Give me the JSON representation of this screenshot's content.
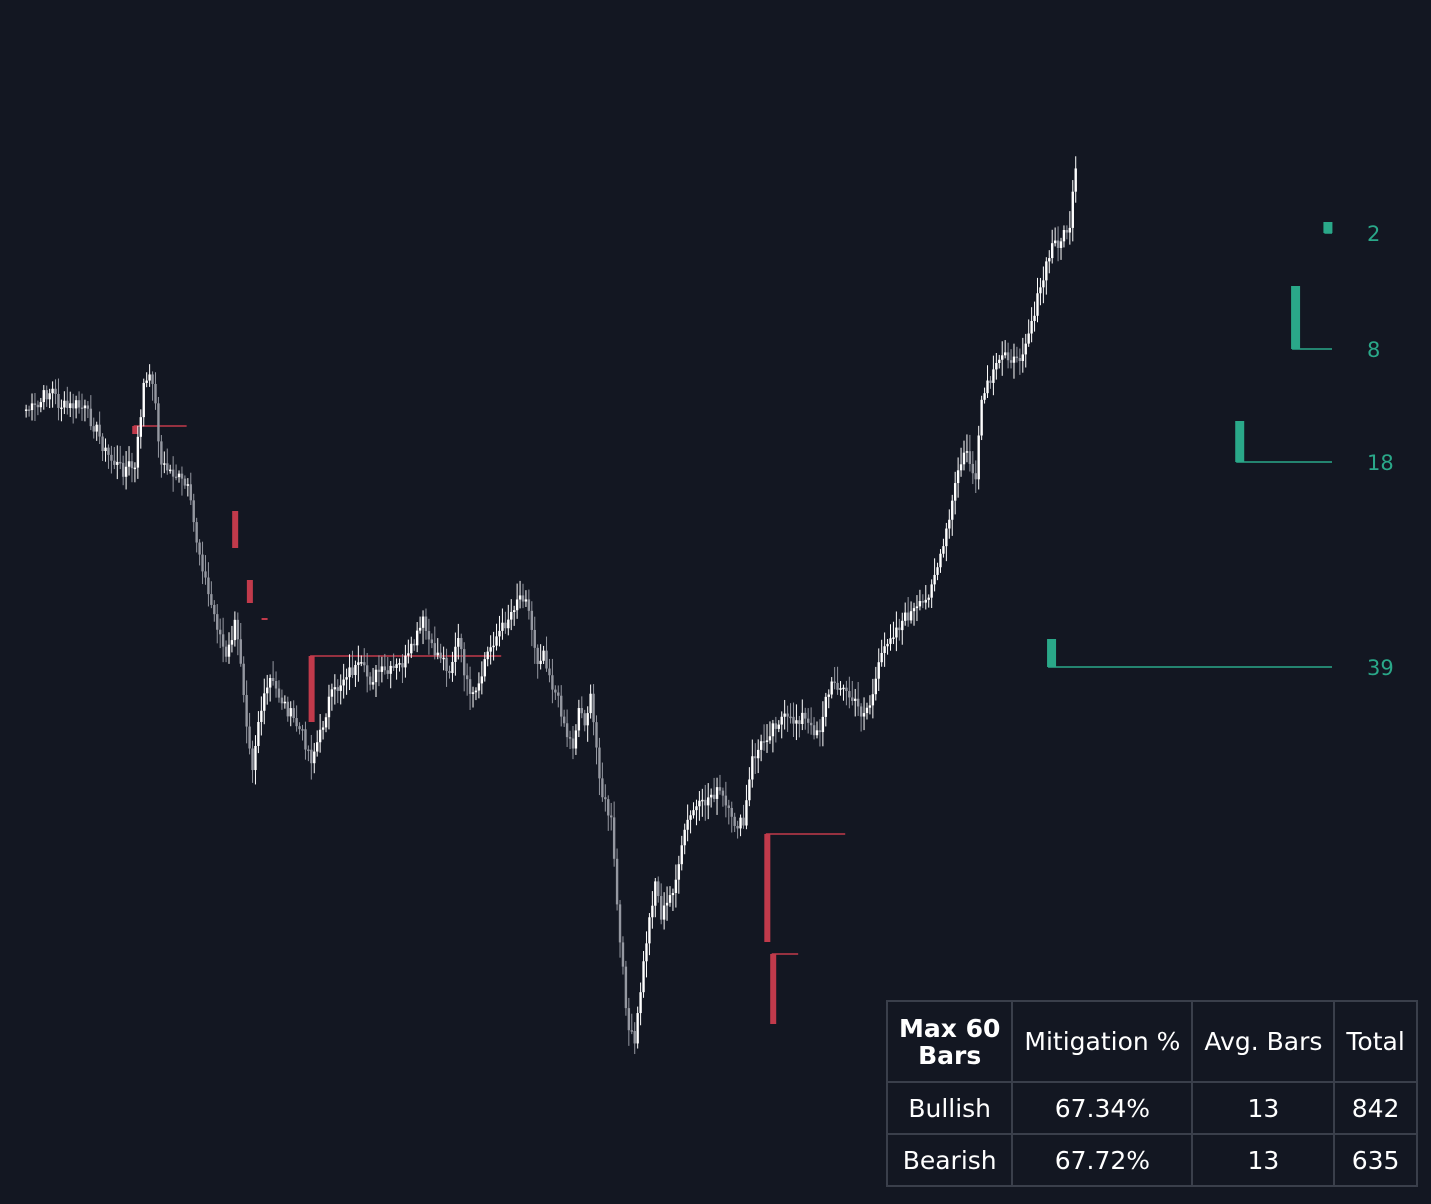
{
  "colors": {
    "background": "#131722",
    "candle_up": "#ffffff",
    "candle_down": "#9598a1",
    "bull_fvg": "#2aa889",
    "bear_fvg": "#c13a4b",
    "table_border": "#3a3f4b",
    "text": "#ffffff"
  },
  "table": {
    "corner_line1": "Max 60",
    "corner_line2": "Bars",
    "headers": [
      "Mitigation %",
      "Avg. Bars",
      "Total"
    ],
    "rows": [
      {
        "label": "Bullish",
        "mitigation": "67.34%",
        "avg_bars": "13",
        "total": "842"
      },
      {
        "label": "Bearish",
        "mitigation": "67.72%",
        "avg_bars": "13",
        "total": "635"
      }
    ]
  },
  "chart_data": {
    "type": "candlestick",
    "title": "",
    "xlabel": "",
    "ylabel": "",
    "grid": false,
    "bars": 226,
    "anchors": [
      [
        0,
        410
      ],
      [
        5,
        408
      ],
      [
        7,
        396
      ],
      [
        10,
        390
      ],
      [
        12,
        404
      ],
      [
        15,
        408
      ],
      [
        18,
        405
      ],
      [
        21,
        410
      ],
      [
        25,
        430
      ],
      [
        28,
        452
      ],
      [
        30,
        460
      ],
      [
        34,
        470
      ],
      [
        36,
        465
      ],
      [
        38,
        470
      ],
      [
        41,
        385
      ],
      [
        44,
        378
      ],
      [
        47,
        465
      ],
      [
        52,
        475
      ],
      [
        56,
        490
      ],
      [
        59,
        540
      ],
      [
        61,
        565
      ],
      [
        63,
        595
      ],
      [
        65,
        615
      ],
      [
        67,
        635
      ],
      [
        69,
        660
      ],
      [
        72,
        625
      ],
      [
        74,
        660
      ],
      [
        76,
        720
      ],
      [
        78,
        765
      ],
      [
        80,
        720
      ],
      [
        84,
        680
      ],
      [
        88,
        700
      ],
      [
        92,
        720
      ],
      [
        95,
        735
      ],
      [
        98,
        758
      ],
      [
        101,
        735
      ],
      [
        104,
        700
      ],
      [
        107,
        688
      ],
      [
        110,
        672
      ],
      [
        115,
        668
      ],
      [
        118,
        680
      ],
      [
        121,
        672
      ],
      [
        124,
        674
      ],
      [
        128,
        666
      ],
      [
        131,
        658
      ],
      [
        136,
        622
      ],
      [
        139,
        650
      ],
      [
        142,
        655
      ],
      [
        145,
        670
      ],
      [
        148,
        640
      ],
      [
        152,
        700
      ],
      [
        155,
        690
      ],
      [
        157,
        660
      ],
      [
        160,
        640
      ],
      [
        163,
        628
      ],
      [
        166,
        612
      ],
      [
        168,
        597
      ],
      [
        171,
        594
      ],
      [
        173,
        630
      ],
      [
        175,
        660
      ],
      [
        177,
        650
      ],
      [
        180,
        685
      ],
      [
        183,
        710
      ],
      [
        185,
        735
      ],
      [
        187,
        745
      ],
      [
        189,
        708
      ],
      [
        191,
        720
      ],
      [
        193,
        700
      ],
      [
        195,
        748
      ],
      [
        197,
        795
      ],
      [
        200,
        822
      ],
      [
        203,
        945
      ],
      [
        206,
        1030
      ],
      [
        208,
        1045
      ],
      [
        210,
        990
      ],
      [
        212,
        940
      ],
      [
        215,
        880
      ],
      [
        217,
        915
      ],
      [
        219,
        905
      ],
      [
        223,
        870
      ],
      [
        225,
        830
      ],
      [
        228,
        810
      ],
      [
        231,
        806
      ],
      [
        234,
        794
      ],
      [
        237,
        792
      ],
      [
        241,
        822
      ],
      [
        245,
        825
      ],
      [
        248,
        760
      ],
      [
        252,
        740
      ],
      [
        255,
        725
      ],
      [
        258,
        718
      ],
      [
        261,
        722
      ],
      [
        265,
        716
      ],
      [
        268,
        730
      ],
      [
        271,
        728
      ],
      [
        273,
        700
      ],
      [
        276,
        680
      ],
      [
        279,
        690
      ],
      [
        282,
        700
      ],
      [
        285,
        712
      ],
      [
        288,
        705
      ],
      [
        291,
        668
      ],
      [
        294,
        638
      ],
      [
        298,
        625
      ],
      [
        301,
        615
      ],
      [
        304,
        610
      ],
      [
        307,
        602
      ],
      [
        309,
        580
      ],
      [
        312,
        560
      ],
      [
        315,
        520
      ],
      [
        318,
        470
      ],
      [
        321,
        450
      ],
      [
        324,
        485
      ],
      [
        326,
        400
      ],
      [
        330,
        375
      ],
      [
        334,
        350
      ],
      [
        338,
        365
      ],
      [
        342,
        330
      ],
      [
        346,
        290
      ],
      [
        350,
        245
      ],
      [
        353,
        240
      ],
      [
        356,
        225
      ],
      [
        358,
        172
      ]
    ],
    "bearish_fvgs": [
      {
        "bar": 38,
        "top": 426,
        "bottom": 434,
        "mitigated_bar": 56,
        "label": ""
      },
      {
        "bar": 72,
        "top": 511,
        "bottom": 548,
        "mitigated_bar": null,
        "label": ""
      },
      {
        "bar": 77,
        "top": 580,
        "bottom": 603,
        "mitigated_bar": null,
        "label": ""
      },
      {
        "bar": 82,
        "top": 618,
        "bottom": 620,
        "mitigated_bar": null,
        "label": ""
      },
      {
        "bar": 98,
        "top": 656,
        "bottom": 722,
        "mitigated_bar": 163,
        "label": ""
      },
      {
        "bar": 253,
        "top": 834,
        "bottom": 942,
        "mitigated_bar": 280,
        "label": ""
      },
      {
        "bar": 255,
        "top": 954,
        "bottom": 1024,
        "mitigated_bar": 264,
        "label": ""
      }
    ],
    "bullish_fvgs": [
      {
        "bar": 349,
        "top": 639,
        "bottom": 667,
        "label": "39"
      },
      {
        "bar": 413,
        "top": 421,
        "bottom": 462,
        "label": "18"
      },
      {
        "bar": 432,
        "top": 286,
        "bottom": 349,
        "label": "8"
      },
      {
        "bar": 443,
        "top": 222,
        "bottom": 233,
        "label": "2"
      }
    ]
  }
}
